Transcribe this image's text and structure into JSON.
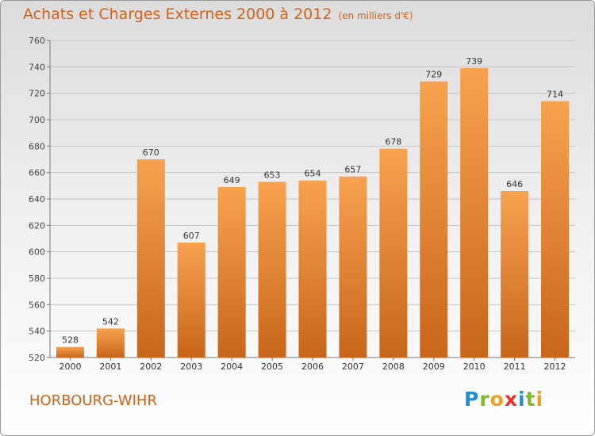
{
  "title": "Achats et Charges Externes 2000 à 2012",
  "subtitle": "(en milliers d'€)",
  "city": "HORBOURG-WIHR",
  "logo": {
    "text": "Proxiti",
    "letters": [
      "P",
      "r",
      "o",
      "x",
      "i",
      "t",
      "i"
    ],
    "colors": [
      "#1e90d6",
      "#7fba2a",
      "#f0a020",
      "#e8332a",
      "#1e90d6",
      "#7fba2a",
      "#f0a020"
    ]
  },
  "colors": {
    "accent": "#d0621a",
    "bar_top": "#f7a24f",
    "bar_bottom": "#c8661b"
  },
  "chart_data": {
    "type": "bar",
    "categories": [
      "2000",
      "2001",
      "2002",
      "2003",
      "2004",
      "2005",
      "2006",
      "2007",
      "2008",
      "2009",
      "2010",
      "2011",
      "2012"
    ],
    "values": [
      528,
      542,
      670,
      607,
      649,
      653,
      654,
      657,
      678,
      729,
      739,
      646,
      714
    ],
    "title": "Achats et Charges Externes 2000 à 2012",
    "xlabel": "",
    "ylabel": "",
    "ylim": [
      520,
      760
    ],
    "yticks": [
      520,
      540,
      560,
      580,
      600,
      620,
      640,
      660,
      680,
      700,
      720,
      740,
      760
    ],
    "grid": true,
    "legend": "none"
  }
}
